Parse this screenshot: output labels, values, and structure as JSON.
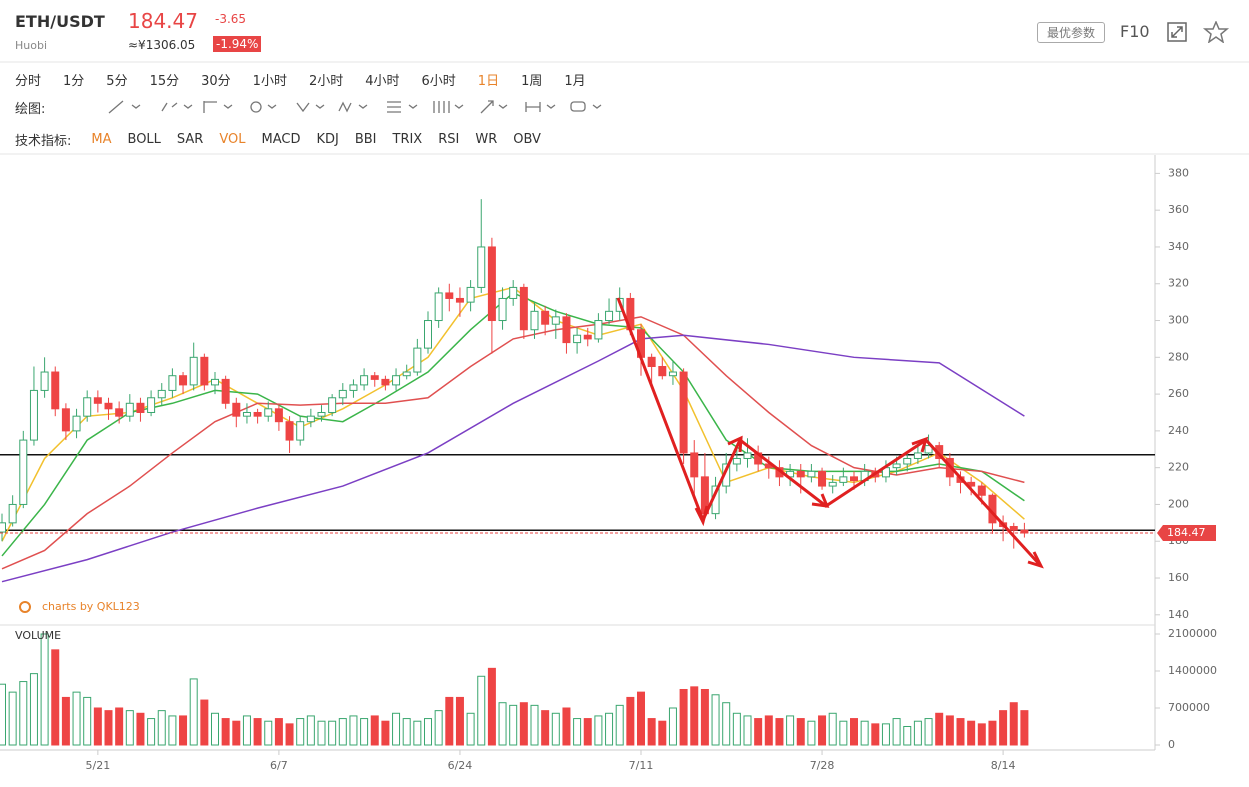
{
  "header": {
    "symbol": "ETH/USDT",
    "exchange": "Huobi",
    "price": "184.47",
    "cny": "≈¥1306.05",
    "change": "-3.65",
    "change_pct": "-1.94%",
    "button": "最优参数",
    "f10": "F10"
  },
  "intervals": [
    "分时",
    "1分",
    "5分",
    "15分",
    "30分",
    "1小时",
    "2小时",
    "4小时",
    "6小时",
    "1日",
    "1周",
    "1月"
  ],
  "active_interval": 9,
  "drawing_label": "绘图:",
  "indicator_label": "技术指标:",
  "indicators": [
    "MA",
    "BOLL",
    "SAR",
    "VOL",
    "MACD",
    "KDJ",
    "BBI",
    "TRIX",
    "RSI",
    "WR",
    "OBV"
  ],
  "active_indicators": [
    0,
    3
  ],
  "watermark": "charts by QKL123",
  "chart_data": [
    {
      "type": "candlestick",
      "up_color": "#3aa66f",
      "down_color": "#ee4444",
      "ylim": [
        135,
        390
      ],
      "yticks": [
        140,
        160,
        180,
        200,
        220,
        240,
        260,
        280,
        300,
        320,
        340,
        360,
        380
      ],
      "xlim": [
        0,
        105
      ],
      "xticks": [
        {
          "value": 9,
          "label": "5/21"
        },
        {
          "value": 26,
          "label": "6/7"
        },
        {
          "value": 43,
          "label": "6/24"
        },
        {
          "value": 60,
          "label": "7/11"
        },
        {
          "value": 77,
          "label": "7/28"
        },
        {
          "value": 94,
          "label": "8/14"
        }
      ],
      "last_price": 184.47,
      "hlines": [
        227,
        186
      ],
      "ohlc": [
        [
          185,
          195,
          180,
          190
        ],
        [
          190,
          205,
          188,
          200
        ],
        [
          200,
          240,
          198,
          235
        ],
        [
          235,
          275,
          232,
          262
        ],
        [
          262,
          280,
          258,
          272
        ],
        [
          272,
          275,
          248,
          252
        ],
        [
          252,
          255,
          235,
          240
        ],
        [
          240,
          252,
          236,
          248
        ],
        [
          248,
          262,
          245,
          258
        ],
        [
          258,
          262,
          250,
          255
        ],
        [
          255,
          258,
          246,
          252
        ],
        [
          252,
          256,
          244,
          248
        ],
        [
          248,
          260,
          245,
          255
        ],
        [
          255,
          258,
          245,
          250
        ],
        [
          250,
          262,
          248,
          258
        ],
        [
          258,
          266,
          254,
          262
        ],
        [
          262,
          274,
          258,
          270
        ],
        [
          270,
          272,
          260,
          265
        ],
        [
          265,
          288,
          262,
          280
        ],
        [
          280,
          282,
          262,
          265
        ],
        [
          265,
          272,
          260,
          268
        ],
        [
          268,
          270,
          252,
          255
        ],
        [
          255,
          258,
          242,
          248
        ],
        [
          248,
          255,
          244,
          250
        ],
        [
          250,
          252,
          244,
          248
        ],
        [
          248,
          256,
          245,
          252
        ],
        [
          252,
          254,
          240,
          245
        ],
        [
          245,
          248,
          228,
          235
        ],
        [
          235,
          248,
          232,
          245
        ],
        [
          245,
          252,
          242,
          248
        ],
        [
          248,
          254,
          245,
          250
        ],
        [
          250,
          260,
          248,
          258
        ],
        [
          258,
          266,
          254,
          262
        ],
        [
          262,
          268,
          258,
          265
        ],
        [
          265,
          274,
          262,
          270
        ],
        [
          270,
          272,
          264,
          268
        ],
        [
          268,
          270,
          262,
          265
        ],
        [
          265,
          274,
          262,
          270
        ],
        [
          270,
          276,
          268,
          272
        ],
        [
          272,
          290,
          270,
          285
        ],
        [
          285,
          305,
          282,
          300
        ],
        [
          300,
          318,
          296,
          315
        ],
        [
          315,
          320,
          305,
          312
        ],
        [
          312,
          318,
          302,
          310
        ],
        [
          310,
          322,
          305,
          318
        ],
        [
          318,
          366,
          315,
          340
        ],
        [
          340,
          345,
          282,
          300
        ],
        [
          300,
          318,
          295,
          312
        ],
        [
          312,
          322,
          308,
          318
        ],
        [
          318,
          320,
          290,
          295
        ],
        [
          295,
          310,
          290,
          305
        ],
        [
          305,
          308,
          292,
          298
        ],
        [
          298,
          306,
          290,
          302
        ],
        [
          302,
          304,
          282,
          288
        ],
        [
          288,
          296,
          282,
          292
        ],
        [
          292,
          296,
          286,
          290
        ],
        [
          290,
          304,
          288,
          300
        ],
        [
          300,
          312,
          298,
          305
        ],
        [
          305,
          318,
          300,
          312
        ],
        [
          312,
          315,
          292,
          295
        ],
        [
          295,
          298,
          270,
          280
        ],
        [
          280,
          282,
          266,
          275
        ],
        [
          275,
          280,
          268,
          270
        ],
        [
          270,
          278,
          265,
          272
        ],
        [
          272,
          274,
          222,
          228
        ],
        [
          228,
          235,
          205,
          215
        ],
        [
          215,
          228,
          192,
          195
        ],
        [
          195,
          215,
          192,
          210
        ],
        [
          210,
          228,
          206,
          222
        ],
        [
          222,
          232,
          218,
          225
        ],
        [
          225,
          236,
          220,
          228
        ],
        [
          228,
          232,
          218,
          222
        ],
        [
          222,
          226,
          214,
          220
        ],
        [
          220,
          224,
          210,
          215
        ],
        [
          215,
          222,
          210,
          218
        ],
        [
          218,
          222,
          206,
          215
        ],
        [
          215,
          222,
          212,
          218
        ],
        [
          218,
          220,
          208,
          210
        ],
        [
          210,
          216,
          206,
          212
        ],
        [
          212,
          220,
          210,
          215
        ],
        [
          215,
          218,
          208,
          213
        ],
        [
          213,
          222,
          210,
          218
        ],
        [
          218,
          220,
          212,
          215
        ],
        [
          215,
          224,
          212,
          220
        ],
        [
          220,
          226,
          216,
          222
        ],
        [
          222,
          228,
          218,
          225
        ],
        [
          225,
          232,
          222,
          228
        ],
        [
          228,
          238,
          225,
          232
        ],
        [
          232,
          234,
          220,
          225
        ],
        [
          225,
          228,
          210,
          215
        ],
        [
          215,
          218,
          206,
          212
        ],
        [
          212,
          215,
          205,
          210
        ],
        [
          210,
          212,
          200,
          205
        ],
        [
          205,
          206,
          184,
          190
        ],
        [
          190,
          194,
          180,
          188
        ],
        [
          188,
          190,
          176,
          186
        ],
        [
          186,
          190,
          182,
          184.47
        ]
      ],
      "lines": [
        {
          "color": "#f2c12e",
          "x": [
            0,
            4,
            8,
            12,
            16,
            20,
            24,
            28,
            32,
            36,
            40,
            44,
            48,
            52,
            56,
            60,
            64,
            68,
            72,
            76,
            80,
            84,
            88,
            92,
            96
          ],
          "values": [
            180,
            225,
            248,
            250,
            258,
            268,
            255,
            242,
            252,
            265,
            280,
            312,
            318,
            300,
            292,
            298,
            262,
            212,
            220,
            215,
            212,
            218,
            228,
            212,
            192
          ]
        },
        {
          "color": "#3bb54a",
          "x": [
            0,
            4,
            8,
            12,
            16,
            20,
            24,
            28,
            32,
            36,
            40,
            44,
            48,
            52,
            56,
            60,
            64,
            68,
            72,
            76,
            80,
            84,
            88,
            92,
            96
          ],
          "values": [
            172,
            200,
            235,
            250,
            255,
            262,
            260,
            248,
            245,
            258,
            272,
            295,
            315,
            305,
            298,
            296,
            272,
            235,
            220,
            218,
            218,
            218,
            222,
            218,
            202
          ]
        },
        {
          "color": "#e05050",
          "x": [
            0,
            4,
            8,
            12,
            16,
            20,
            24,
            28,
            32,
            36,
            40,
            44,
            48,
            52,
            56,
            60,
            64,
            68,
            72,
            76,
            80,
            84,
            88,
            92,
            96
          ],
          "values": [
            165,
            175,
            195,
            210,
            228,
            245,
            255,
            254,
            255,
            255,
            258,
            275,
            290,
            295,
            298,
            302,
            292,
            270,
            250,
            232,
            220,
            216,
            220,
            218,
            212
          ]
        },
        {
          "color": "#7b3fc4",
          "x": [
            0,
            8,
            16,
            24,
            32,
            40,
            48,
            56,
            60,
            64,
            72,
            80,
            88,
            96
          ],
          "values": [
            158,
            170,
            185,
            198,
            210,
            228,
            255,
            278,
            290,
            292,
            287,
            280,
            277,
            248
          ]
        }
      ]
    },
    {
      "type": "bar",
      "title": "VOLUME",
      "ylim": [
        0,
        2270000
      ],
      "yticks": [
        0,
        700000,
        1400000,
        2100000
      ],
      "values": [
        1150000,
        1000000,
        1200000,
        1350000,
        2100000,
        1800000,
        900000,
        1000000,
        900000,
        700000,
        650000,
        700000,
        650000,
        600000,
        500000,
        650000,
        550000,
        550000,
        1250000,
        850000,
        600000,
        500000,
        450000,
        550000,
        500000,
        450000,
        500000,
        400000,
        500000,
        550000,
        450000,
        450000,
        500000,
        550000,
        500000,
        550000,
        450000,
        600000,
        500000,
        450000,
        500000,
        650000,
        900000,
        900000,
        600000,
        1300000,
        1450000,
        800000,
        750000,
        800000,
        750000,
        650000,
        600000,
        700000,
        500000,
        500000,
        550000,
        600000,
        750000,
        900000,
        1000000,
        500000,
        450000,
        700000,
        1050000,
        1100000,
        1050000,
        950000,
        800000,
        600000,
        550000,
        500000,
        550000,
        500000,
        550000,
        500000,
        450000,
        550000,
        600000,
        450000,
        500000,
        450000,
        400000,
        400000,
        500000,
        350000,
        450000,
        500000,
        600000,
        550000,
        500000,
        450000,
        400000,
        450000,
        650000,
        800000,
        650000
      ]
    }
  ]
}
